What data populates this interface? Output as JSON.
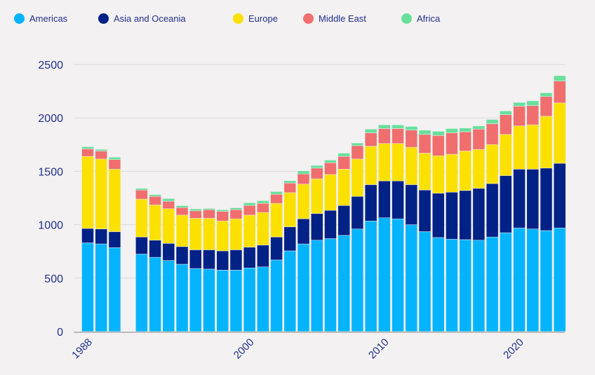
{
  "chart_data": {
    "type": "bar",
    "stacked": true,
    "title": "",
    "xlabel": "",
    "ylabel": "",
    "ylim": [
      0,
      2500
    ],
    "yticks": [
      0,
      500,
      1000,
      1500,
      2000,
      2500
    ],
    "xtick_labels": [
      "1988",
      "2000",
      "2010",
      "2020"
    ],
    "grid": true,
    "legend_position": "top",
    "categories": [
      "1988",
      "1989",
      "1990",
      "1991",
      "1992",
      "1993",
      "1994",
      "1995",
      "1996",
      "1997",
      "1998",
      "1999",
      "2000",
      "2001",
      "2002",
      "2003",
      "2004",
      "2005",
      "2006",
      "2007",
      "2008",
      "2009",
      "2010",
      "2011",
      "2012",
      "2013",
      "2014",
      "2015",
      "2016",
      "2017",
      "2018",
      "2019",
      "2020",
      "2021",
      "2022",
      "2023"
    ],
    "series": [
      {
        "name": "Americas",
        "color": "#05b4fd",
        "values": [
          830,
          820,
          785,
          null,
          725,
          695,
          665,
          630,
          590,
          585,
          575,
          575,
          595,
          605,
          670,
          755,
          820,
          855,
          870,
          900,
          960,
          1035,
          1065,
          1055,
          1000,
          935,
          880,
          865,
          860,
          855,
          885,
          925,
          970,
          960,
          945,
          970
        ]
      },
      {
        "name": "Asia and Oceania",
        "color": "#002185",
        "values": [
          135,
          140,
          150,
          null,
          160,
          160,
          160,
          165,
          175,
          180,
          180,
          190,
          195,
          205,
          215,
          225,
          235,
          250,
          265,
          280,
          305,
          340,
          345,
          355,
          375,
          390,
          415,
          440,
          460,
          485,
          500,
          535,
          550,
          560,
          585,
          605
        ]
      },
      {
        "name": "Europe",
        "color": "#fbe000",
        "values": [
          675,
          655,
          585,
          null,
          355,
          330,
          325,
          295,
          295,
          295,
          280,
          290,
          300,
          305,
          315,
          320,
          325,
          325,
          335,
          340,
          350,
          360,
          350,
          350,
          350,
          345,
          350,
          355,
          370,
          365,
          365,
          385,
          405,
          415,
          485,
          565
        ]
      },
      {
        "name": "Middle East",
        "color": "#f06e6e",
        "values": [
          70,
          75,
          90,
          null,
          85,
          80,
          70,
          70,
          70,
          80,
          90,
          85,
          90,
          85,
          85,
          90,
          95,
          100,
          110,
          120,
          125,
          125,
          140,
          140,
          160,
          175,
          190,
          200,
          180,
          190,
          195,
          185,
          185,
          180,
          185,
          205
        ]
      },
      {
        "name": "Africa",
        "color": "#68e09c",
        "values": [
          20,
          15,
          22,
          null,
          15,
          17,
          25,
          18,
          18,
          12,
          15,
          18,
          25,
          25,
          25,
          22,
          30,
          25,
          25,
          30,
          25,
          35,
          35,
          35,
          35,
          40,
          40,
          40,
          35,
          30,
          40,
          35,
          35,
          45,
          35,
          50
        ]
      }
    ]
  }
}
